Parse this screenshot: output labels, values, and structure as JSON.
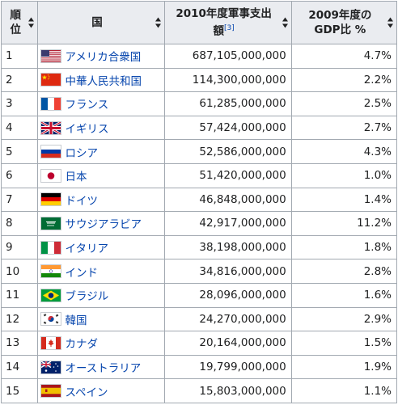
{
  "table": {
    "headers": {
      "rank": "順位",
      "country": "国",
      "spending": "2010年度軍事支出額",
      "spending_ref": "[3]",
      "gdp": "2009年度の GDP比 %"
    },
    "rows": [
      {
        "rank": "1",
        "country": "アメリカ合衆国",
        "flag": "usa-flag-icon",
        "spending": "687,105,000,000",
        "gdp": "4.7%"
      },
      {
        "rank": "2",
        "country": "中華人民共和国",
        "flag": "china-flag-icon",
        "spending": "114,300,000,000",
        "gdp": "2.2%"
      },
      {
        "rank": "3",
        "country": "フランス",
        "flag": "france-flag-icon",
        "spending": "61,285,000,000",
        "gdp": "2.5%"
      },
      {
        "rank": "4",
        "country": "イギリス",
        "flag": "uk-flag-icon",
        "spending": "57,424,000,000",
        "gdp": "2.7%"
      },
      {
        "rank": "5",
        "country": "ロシア",
        "flag": "russia-flag-icon",
        "spending": "52,586,000,000",
        "gdp": "4.3%"
      },
      {
        "rank": "6",
        "country": "日本",
        "flag": "japan-flag-icon",
        "spending": "51,420,000,000",
        "gdp": "1.0%"
      },
      {
        "rank": "7",
        "country": "ドイツ",
        "flag": "germany-flag-icon",
        "spending": "46,848,000,000",
        "gdp": "1.4%"
      },
      {
        "rank": "8",
        "country": "サウジアラビア",
        "flag": "saudi-arabia-flag-icon",
        "spending": "42,917,000,000",
        "gdp": "11.2%"
      },
      {
        "rank": "9",
        "country": "イタリア",
        "flag": "italy-flag-icon",
        "spending": "38,198,000,000",
        "gdp": "1.8%"
      },
      {
        "rank": "10",
        "country": "インド",
        "flag": "india-flag-icon",
        "spending": "34,816,000,000",
        "gdp": "2.8%"
      },
      {
        "rank": "11",
        "country": "ブラジル",
        "flag": "brazil-flag-icon",
        "spending": "28,096,000,000",
        "gdp": "1.6%"
      },
      {
        "rank": "12",
        "country": "韓国",
        "flag": "south-korea-flag-icon",
        "spending": "24,270,000,000",
        "gdp": "2.9%"
      },
      {
        "rank": "13",
        "country": "カナダ",
        "flag": "canada-flag-icon",
        "spending": "20,164,000,000",
        "gdp": "1.5%"
      },
      {
        "rank": "14",
        "country": "オーストラリア",
        "flag": "australia-flag-icon",
        "spending": "19,799,000,000",
        "gdp": "1.9%"
      },
      {
        "rank": "15",
        "country": "スペイン",
        "flag": "spain-flag-icon",
        "spending": "15,803,000,000",
        "gdp": "1.1%"
      }
    ]
  },
  "colors": {
    "header_bg": "#eaecf0",
    "border": "#a2a9b1",
    "link": "#0645ad"
  }
}
